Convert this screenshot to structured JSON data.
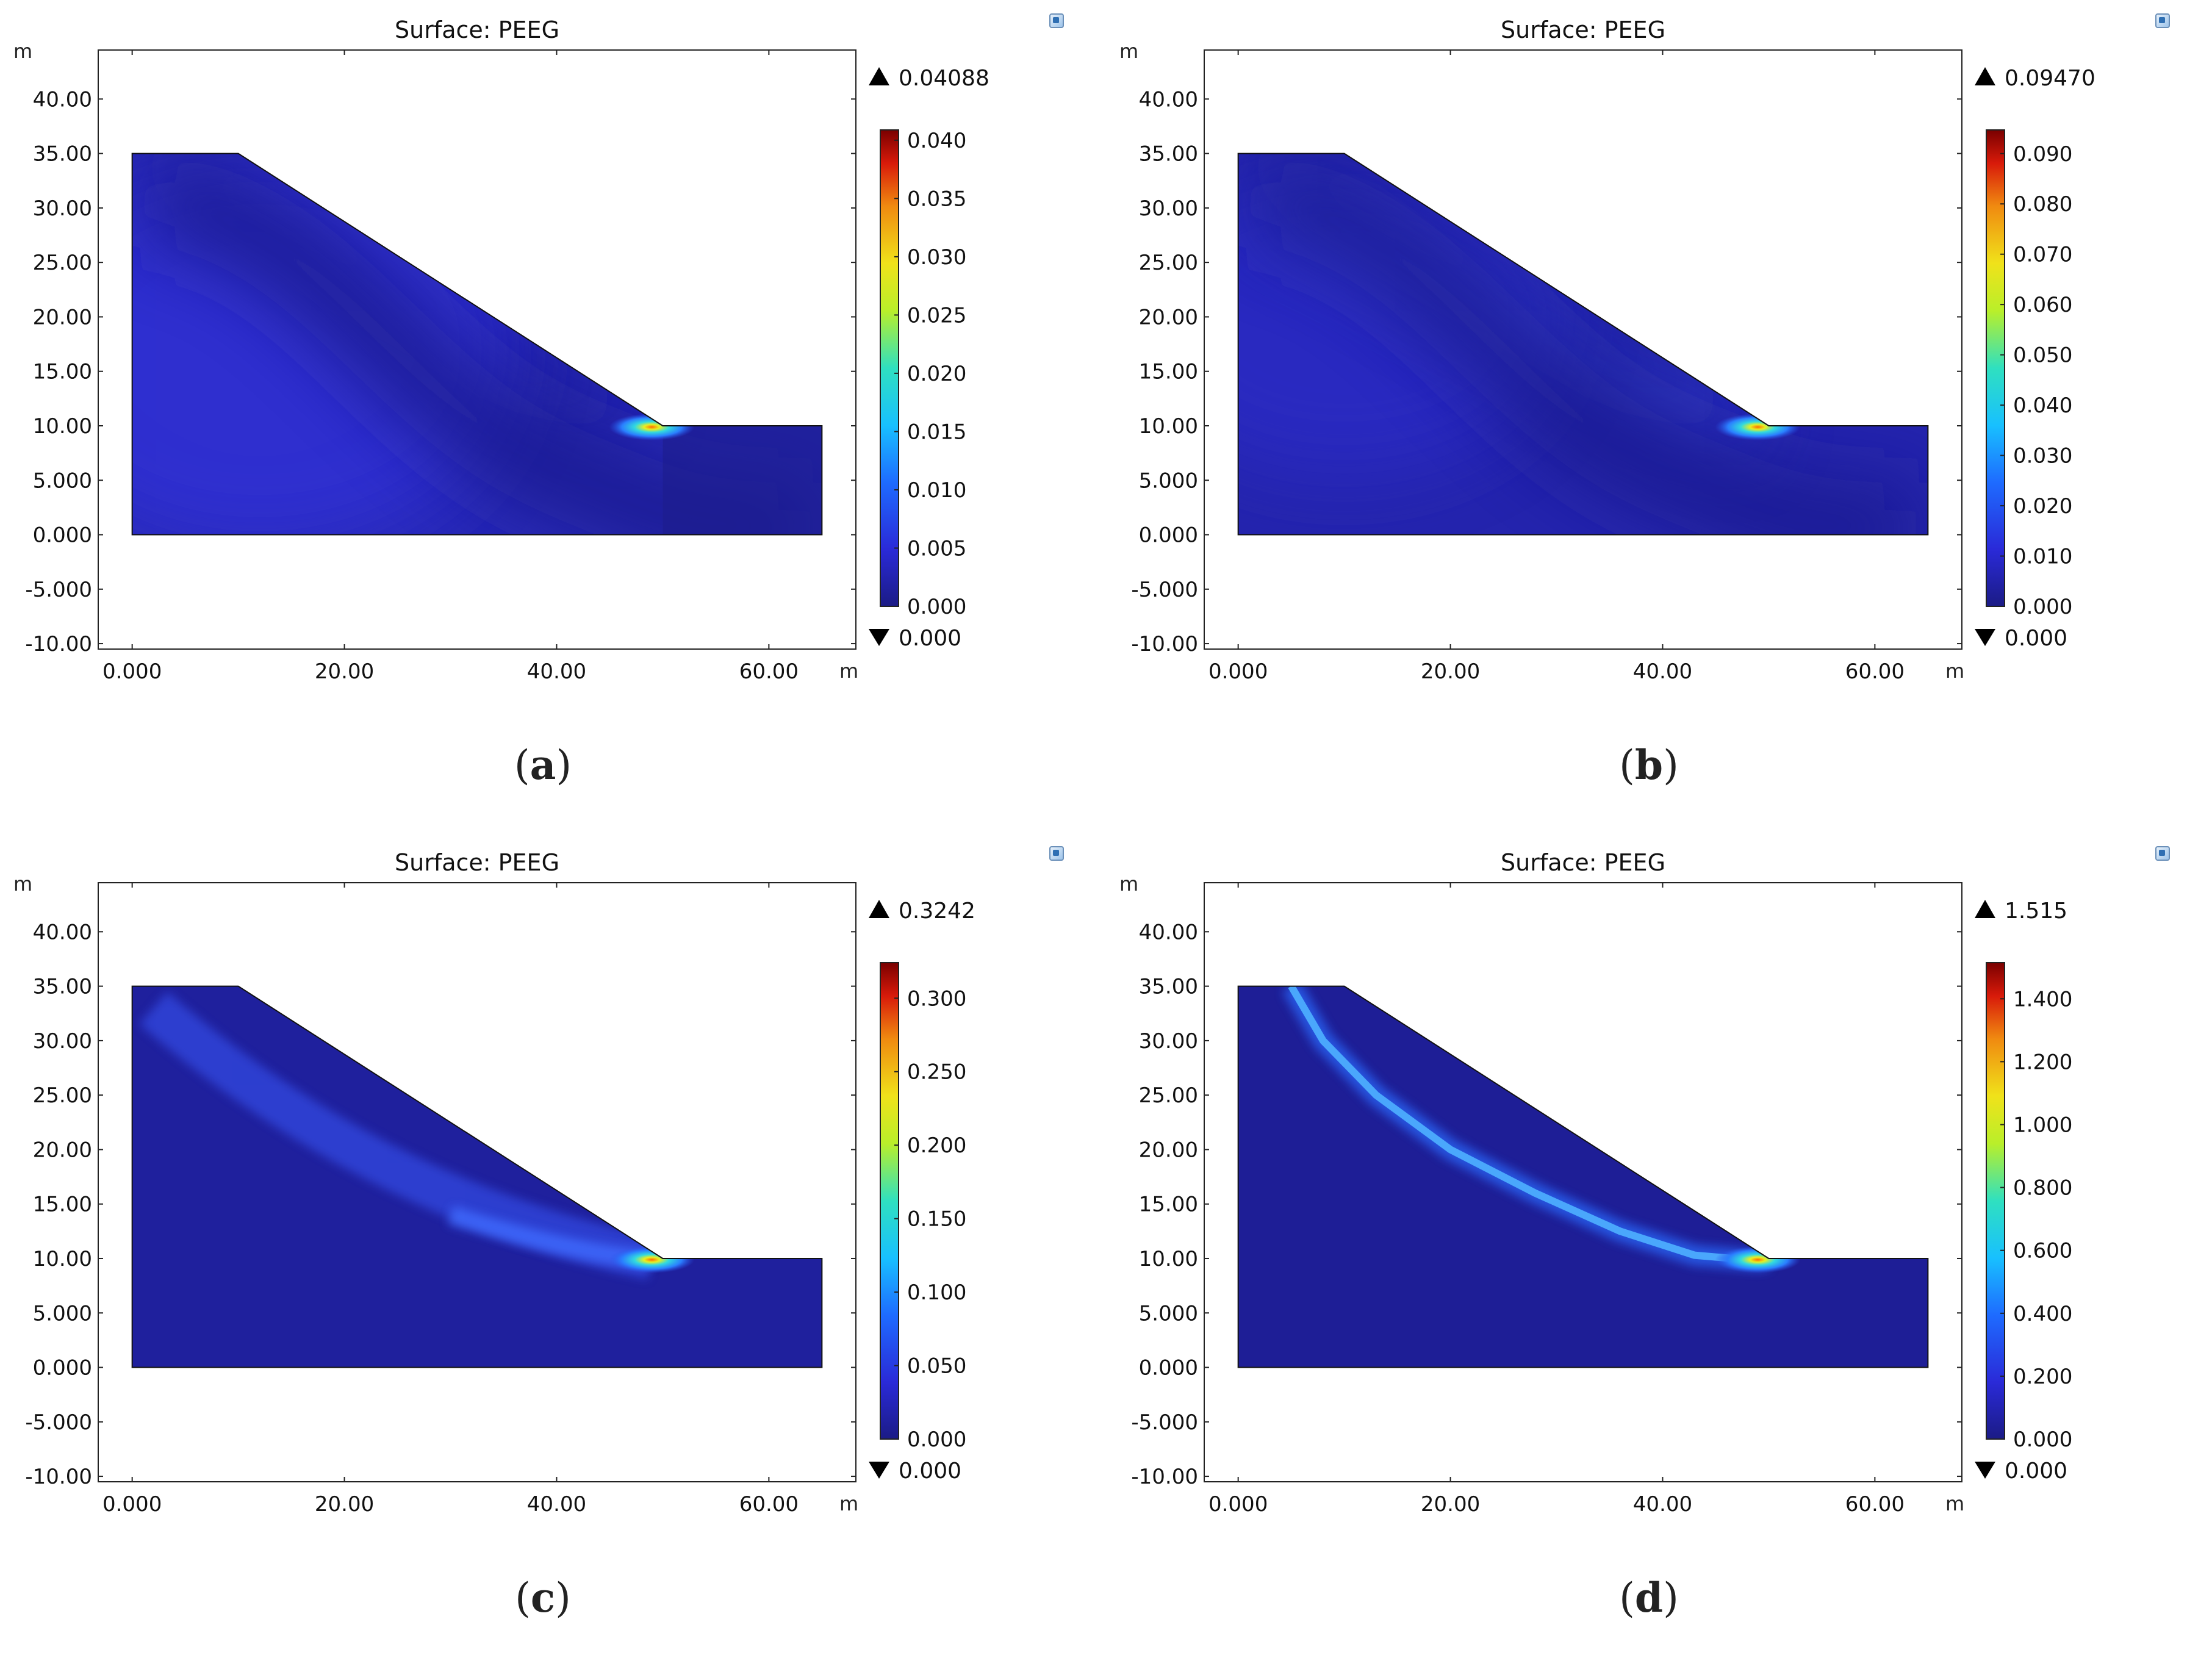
{
  "chart_data": [
    {
      "type": "heatmap",
      "id": "a",
      "caption": "a",
      "title": "Surface: PEEG",
      "xlabel": "m",
      "ylabel": "m",
      "xlim": [
        -3.2,
        68.2
      ],
      "ylim": [
        -10.5,
        44.5
      ],
      "xticks": [
        0,
        20,
        40,
        60
      ],
      "xtick_labels": [
        "0.000",
        "20.00",
        "40.00",
        "60.00"
      ],
      "yticks": [
        -10,
        -5,
        0,
        5,
        10,
        15,
        20,
        25,
        30,
        35,
        40
      ],
      "ytick_labels": [
        "-10.00",
        "-5.000",
        "0.000",
        "5.000",
        "10.00",
        "15.00",
        "20.00",
        "25.00",
        "30.00",
        "35.00",
        "40.00"
      ],
      "domain_polygon": [
        [
          0,
          0
        ],
        [
          65,
          0
        ],
        [
          65,
          10
        ],
        [
          50,
          10
        ],
        [
          10,
          35
        ],
        [
          0,
          35
        ]
      ],
      "max_label": "0.04088",
      "min_label": "0.000",
      "colorbar_range": [
        0,
        0.04088
      ],
      "colorbar_ticks": [
        0,
        0.005,
        0.01,
        0.015,
        0.02,
        0.025,
        0.03,
        0.035,
        0.04
      ],
      "colorbar_tick_labels": [
        "0.000",
        "0.005",
        "0.010",
        "0.015",
        "0.020",
        "0.025",
        "0.030",
        "0.035",
        "0.040"
      ],
      "field_pattern": "diffuse low-level plastic strain band through slope body with peak at slope toe",
      "peak_location": [
        50,
        10
      ]
    },
    {
      "type": "heatmap",
      "id": "b",
      "caption": "b",
      "title": "Surface: PEEG",
      "xlabel": "m",
      "ylabel": "m",
      "xlim": [
        -3.2,
        68.2
      ],
      "ylim": [
        -10.5,
        44.5
      ],
      "xticks": [
        0,
        20,
        40,
        60
      ],
      "xtick_labels": [
        "0.000",
        "20.00",
        "40.00",
        "60.00"
      ],
      "yticks": [
        -10,
        -5,
        0,
        5,
        10,
        15,
        20,
        25,
        30,
        35,
        40
      ],
      "ytick_labels": [
        "-10.00",
        "-5.000",
        "0.000",
        "5.000",
        "10.00",
        "15.00",
        "20.00",
        "25.00",
        "30.00",
        "35.00",
        "40.00"
      ],
      "domain_polygon": [
        [
          0,
          0
        ],
        [
          65,
          0
        ],
        [
          65,
          10
        ],
        [
          50,
          10
        ],
        [
          10,
          35
        ],
        [
          0,
          35
        ]
      ],
      "max_label": "0.09470",
      "min_label": "0.000",
      "colorbar_range": [
        0,
        0.0947
      ],
      "colorbar_ticks": [
        0,
        0.01,
        0.02,
        0.03,
        0.04,
        0.05,
        0.06,
        0.07,
        0.08,
        0.09
      ],
      "colorbar_tick_labels": [
        "0.000",
        "0.010",
        "0.020",
        "0.030",
        "0.040",
        "0.050",
        "0.060",
        "0.070",
        "0.080",
        "0.090"
      ],
      "field_pattern": "plastic strain concentrating toward slip band, peak at slope toe",
      "peak_location": [
        50,
        10
      ]
    },
    {
      "type": "heatmap",
      "id": "c",
      "caption": "c",
      "title": "Surface: PEEG",
      "xlabel": "m",
      "ylabel": "m",
      "xlim": [
        -3.2,
        68.2
      ],
      "ylim": [
        -10.5,
        44.5
      ],
      "xticks": [
        0,
        20,
        40,
        60
      ],
      "xtick_labels": [
        "0.000",
        "20.00",
        "40.00",
        "60.00"
      ],
      "yticks": [
        -10,
        -5,
        0,
        5,
        10,
        15,
        20,
        25,
        30,
        35,
        40
      ],
      "ytick_labels": [
        "-10.00",
        "-5.000",
        "0.000",
        "5.000",
        "10.00",
        "15.00",
        "20.00",
        "25.00",
        "30.00",
        "35.00",
        "40.00"
      ],
      "domain_polygon": [
        [
          0,
          0
        ],
        [
          65,
          0
        ],
        [
          65,
          10
        ],
        [
          50,
          10
        ],
        [
          10,
          35
        ],
        [
          0,
          35
        ]
      ],
      "max_label": "0.3242",
      "min_label": "0.000",
      "colorbar_range": [
        0,
        0.3242
      ],
      "colorbar_ticks": [
        0,
        0.05,
        0.1,
        0.15,
        0.2,
        0.25,
        0.3
      ],
      "colorbar_tick_labels": [
        "0.000",
        "0.050",
        "0.100",
        "0.150",
        "0.200",
        "0.250",
        "0.300"
      ],
      "field_pattern": "narrowing slip band from crest toward toe, peak at slope toe",
      "peak_location": [
        50,
        10
      ]
    },
    {
      "type": "heatmap",
      "id": "d",
      "caption": "d",
      "title": "Surface: PEEG",
      "xlabel": "m",
      "ylabel": "m",
      "xlim": [
        -3.2,
        68.2
      ],
      "ylim": [
        -10.5,
        44.5
      ],
      "xticks": [
        0,
        20,
        40,
        60
      ],
      "xtick_labels": [
        "0.000",
        "20.00",
        "40.00",
        "60.00"
      ],
      "yticks": [
        -10,
        -5,
        0,
        5,
        10,
        15,
        20,
        25,
        30,
        35,
        40
      ],
      "ytick_labels": [
        "-10.00",
        "-5.000",
        "0.000",
        "5.000",
        "10.00",
        "15.00",
        "20.00",
        "25.00",
        "30.00",
        "35.00",
        "40.00"
      ],
      "domain_polygon": [
        [
          0,
          0
        ],
        [
          65,
          0
        ],
        [
          65,
          10
        ],
        [
          50,
          10
        ],
        [
          10,
          35
        ],
        [
          0,
          35
        ]
      ],
      "max_label": "1.515",
      "min_label": "0.000",
      "colorbar_range": [
        0,
        1.515
      ],
      "colorbar_ticks": [
        0,
        0.2,
        0.4,
        0.6,
        0.8,
        1.0,
        1.2,
        1.4
      ],
      "colorbar_tick_labels": [
        "0.000",
        "0.200",
        "0.400",
        "0.600",
        "0.800",
        "1.000",
        "1.200",
        "1.400"
      ],
      "field_pattern": "fully developed circular slip surface from crest to toe",
      "slip_surface": [
        [
          5,
          35
        ],
        [
          8,
          30
        ],
        [
          13,
          25
        ],
        [
          20,
          20
        ],
        [
          28,
          16
        ],
        [
          36,
          12.5
        ],
        [
          43,
          10.3
        ],
        [
          49,
          9.8
        ],
        [
          50,
          10
        ]
      ],
      "peak_location": [
        50,
        10
      ]
    }
  ]
}
